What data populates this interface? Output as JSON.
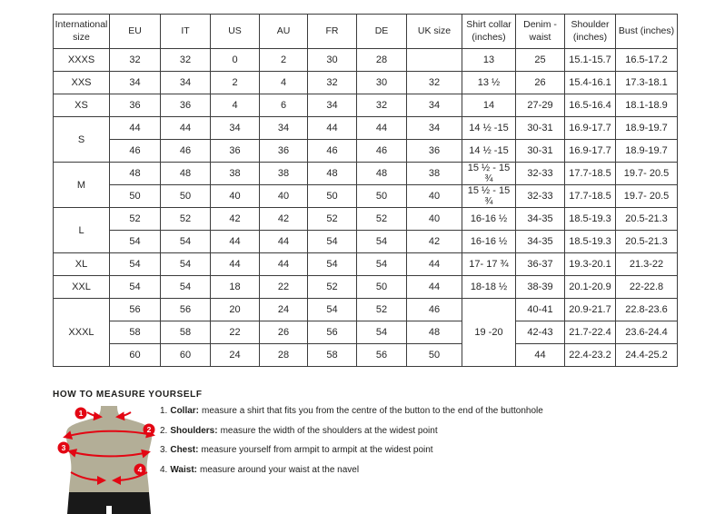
{
  "size_table": {
    "headers": [
      "International size",
      "EU",
      "IT",
      "US",
      "AU",
      "FR",
      "DE",
      "UK size",
      "Shirt collar (inches)",
      "Denim - waist",
      "Shoulder (inches)",
      "Bust (inches)"
    ],
    "rows": [
      [
        {
          "t": "XXXS"
        },
        {
          "t": "32"
        },
        {
          "t": "32"
        },
        {
          "t": "0"
        },
        {
          "t": "2"
        },
        {
          "t": "30"
        },
        {
          "t": "28"
        },
        {
          "t": ""
        },
        {
          "t": "13"
        },
        {
          "t": "25"
        },
        {
          "t": "15.1-15.7"
        },
        {
          "t": "16.5-17.2"
        }
      ],
      [
        {
          "t": "XXS"
        },
        {
          "t": "34"
        },
        {
          "t": "34"
        },
        {
          "t": "2"
        },
        {
          "t": "4"
        },
        {
          "t": "32"
        },
        {
          "t": "30"
        },
        {
          "t": "32"
        },
        {
          "t": "13 ½"
        },
        {
          "t": "26"
        },
        {
          "t": "15.4-16.1"
        },
        {
          "t": "17.3-18.1"
        }
      ],
      [
        {
          "t": "XS"
        },
        {
          "t": "36"
        },
        {
          "t": "36"
        },
        {
          "t": "4"
        },
        {
          "t": "6"
        },
        {
          "t": "34"
        },
        {
          "t": "32"
        },
        {
          "t": "34"
        },
        {
          "t": "14"
        },
        {
          "t": "27-29"
        },
        {
          "t": "16.5-16.4"
        },
        {
          "t": "18.1-18.9"
        }
      ],
      [
        {
          "t": "S",
          "rs": 2
        },
        {
          "t": "44"
        },
        {
          "t": "44"
        },
        {
          "t": "34"
        },
        {
          "t": "34"
        },
        {
          "t": "44"
        },
        {
          "t": "44"
        },
        {
          "t": "34"
        },
        {
          "t": "14 ½ -15"
        },
        {
          "t": "30-31"
        },
        {
          "t": "16.9-17.7"
        },
        {
          "t": "18.9-19.7"
        }
      ],
      [
        {
          "t": "46"
        },
        {
          "t": "46"
        },
        {
          "t": "36"
        },
        {
          "t": "36"
        },
        {
          "t": "46"
        },
        {
          "t": "46"
        },
        {
          "t": "36"
        },
        {
          "t": "14 ½ -15"
        },
        {
          "t": "30-31"
        },
        {
          "t": "16.9-17.7"
        },
        {
          "t": "18.9-19.7"
        }
      ],
      [
        {
          "t": "M",
          "rs": 2
        },
        {
          "t": "48"
        },
        {
          "t": "48"
        },
        {
          "t": "38"
        },
        {
          "t": "38"
        },
        {
          "t": "48"
        },
        {
          "t": "48"
        },
        {
          "t": "38"
        },
        {
          "t": "15 ½ - 15 ¾"
        },
        {
          "t": "32-33"
        },
        {
          "t": "17.7-18.5"
        },
        {
          "t": "19.7- 20.5"
        }
      ],
      [
        {
          "t": "50"
        },
        {
          "t": "50"
        },
        {
          "t": "40"
        },
        {
          "t": "40"
        },
        {
          "t": "50"
        },
        {
          "t": "50"
        },
        {
          "t": "40"
        },
        {
          "t": "15 ½ - 15 ¾"
        },
        {
          "t": "32-33"
        },
        {
          "t": "17.7-18.5"
        },
        {
          "t": "19.7- 20.5"
        }
      ],
      [
        {
          "t": "L",
          "rs": 2
        },
        {
          "t": "52"
        },
        {
          "t": "52"
        },
        {
          "t": "42"
        },
        {
          "t": "42"
        },
        {
          "t": "52"
        },
        {
          "t": "52"
        },
        {
          "t": "40"
        },
        {
          "t": "16-16 ½"
        },
        {
          "t": "34-35"
        },
        {
          "t": "18.5-19.3"
        },
        {
          "t": "20.5-21.3"
        }
      ],
      [
        {
          "t": "54"
        },
        {
          "t": "54"
        },
        {
          "t": "44"
        },
        {
          "t": "44"
        },
        {
          "t": "54"
        },
        {
          "t": "54"
        },
        {
          "t": "42"
        },
        {
          "t": "16-16 ½"
        },
        {
          "t": "34-35"
        },
        {
          "t": "18.5-19.3"
        },
        {
          "t": "20.5-21.3"
        }
      ],
      [
        {
          "t": "XL"
        },
        {
          "t": "54"
        },
        {
          "t": "54"
        },
        {
          "t": "44"
        },
        {
          "t": "44"
        },
        {
          "t": "54"
        },
        {
          "t": "54"
        },
        {
          "t": "44"
        },
        {
          "t": "17- 17 ¾"
        },
        {
          "t": "36-37"
        },
        {
          "t": "19.3-20.1"
        },
        {
          "t": "21.3-22"
        }
      ],
      [
        {
          "t": "XXL"
        },
        {
          "t": "54"
        },
        {
          "t": "54"
        },
        {
          "t": "18"
        },
        {
          "t": "22"
        },
        {
          "t": "52"
        },
        {
          "t": "50"
        },
        {
          "t": "44"
        },
        {
          "t": "18-18 ½"
        },
        {
          "t": "38-39"
        },
        {
          "t": "20.1-20.9"
        },
        {
          "t": "22-22.8"
        }
      ],
      [
        {
          "t": "XXXL",
          "rs": 3
        },
        {
          "t": "56"
        },
        {
          "t": "56"
        },
        {
          "t": "20"
        },
        {
          "t": "24"
        },
        {
          "t": "54"
        },
        {
          "t": "52"
        },
        {
          "t": "46"
        },
        {
          "t": "19 -20",
          "rs": 3
        },
        {
          "t": "40-41"
        },
        {
          "t": "20.9-21.7"
        },
        {
          "t": "22.8-23.6"
        }
      ],
      [
        {
          "t": "58"
        },
        {
          "t": "58"
        },
        {
          "t": "22"
        },
        {
          "t": "26"
        },
        {
          "t": "56"
        },
        {
          "t": "54"
        },
        {
          "t": "48"
        },
        {
          "t": "42-43"
        },
        {
          "t": "21.7-22.4"
        },
        {
          "t": "23.6-24.4"
        }
      ],
      [
        {
          "t": "60"
        },
        {
          "t": "60"
        },
        {
          "t": "24"
        },
        {
          "t": "28"
        },
        {
          "t": "58"
        },
        {
          "t": "56"
        },
        {
          "t": "50"
        },
        {
          "t": "44"
        },
        {
          "t": "22.4-23.2"
        },
        {
          "t": "24.4-25.2"
        }
      ]
    ]
  },
  "measure": {
    "title": "HOW TO MEASURE YOURSELF",
    "steps": [
      {
        "num": "1.",
        "label": "Collar:",
        "text": "measure a shirt that fits you from the centre of the button to the end of the buttonhole"
      },
      {
        "num": "2.",
        "label": "Shoulders:",
        "text": "measure the width of the shoulders at the widest point"
      },
      {
        "num": "3.",
        "label": "Chest:",
        "text": "measure yourself from armpit to armpit at the widest point"
      },
      {
        "num": "4.",
        "label": "Waist:",
        "text": "measure around your waist at the navel"
      }
    ],
    "figure": {
      "markers": [
        "1",
        "2",
        "3",
        "4"
      ],
      "colors": {
        "accent_red": "#e30613",
        "mannequin_tan": "#b3ae97",
        "mannequin_black": "#191919"
      }
    }
  }
}
